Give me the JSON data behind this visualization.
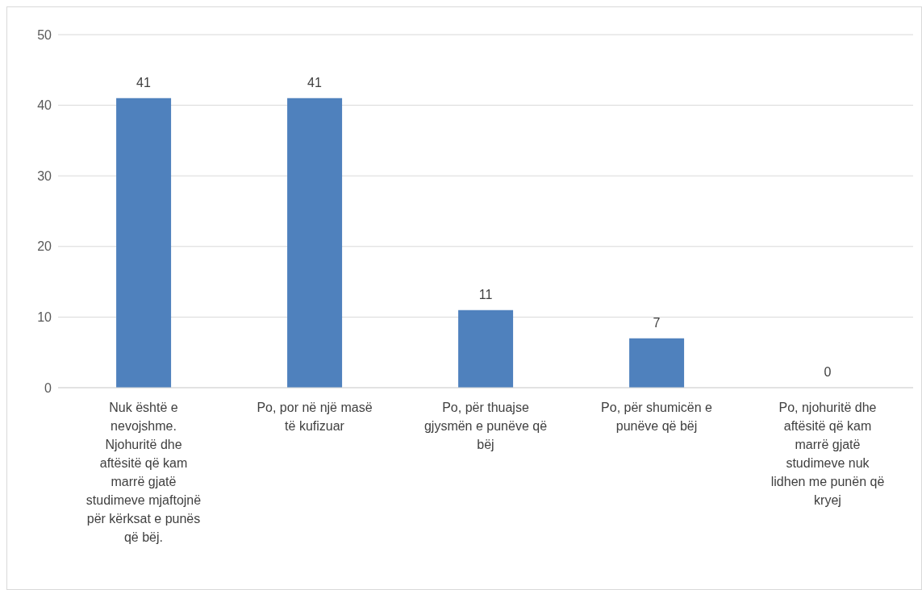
{
  "chart_data": {
    "type": "bar",
    "categories": [
      "Nuk është e nevojshme. Njohuritë dhe aftësitë që kam marrë gjatë studimeve mjaftojnë për kërksat e punës që bëj.",
      "Po, por në një masë të kufizuar",
      "Po, për thuajse gjysmën e punëve që bëj",
      "Po, për shumicën e punëve që bëj",
      "Po, njohuritë dhe aftësitë që kam marrë gjatë studimeve nuk lidhen me punën që kryej"
    ],
    "values": [
      41,
      41,
      11,
      7,
      0
    ],
    "color": "#4f81bd",
    "ylim": [
      0,
      50
    ],
    "yticks": [
      0,
      10,
      20,
      30,
      40,
      50
    ],
    "grid": "y",
    "data_labels": true,
    "legend": false
  }
}
